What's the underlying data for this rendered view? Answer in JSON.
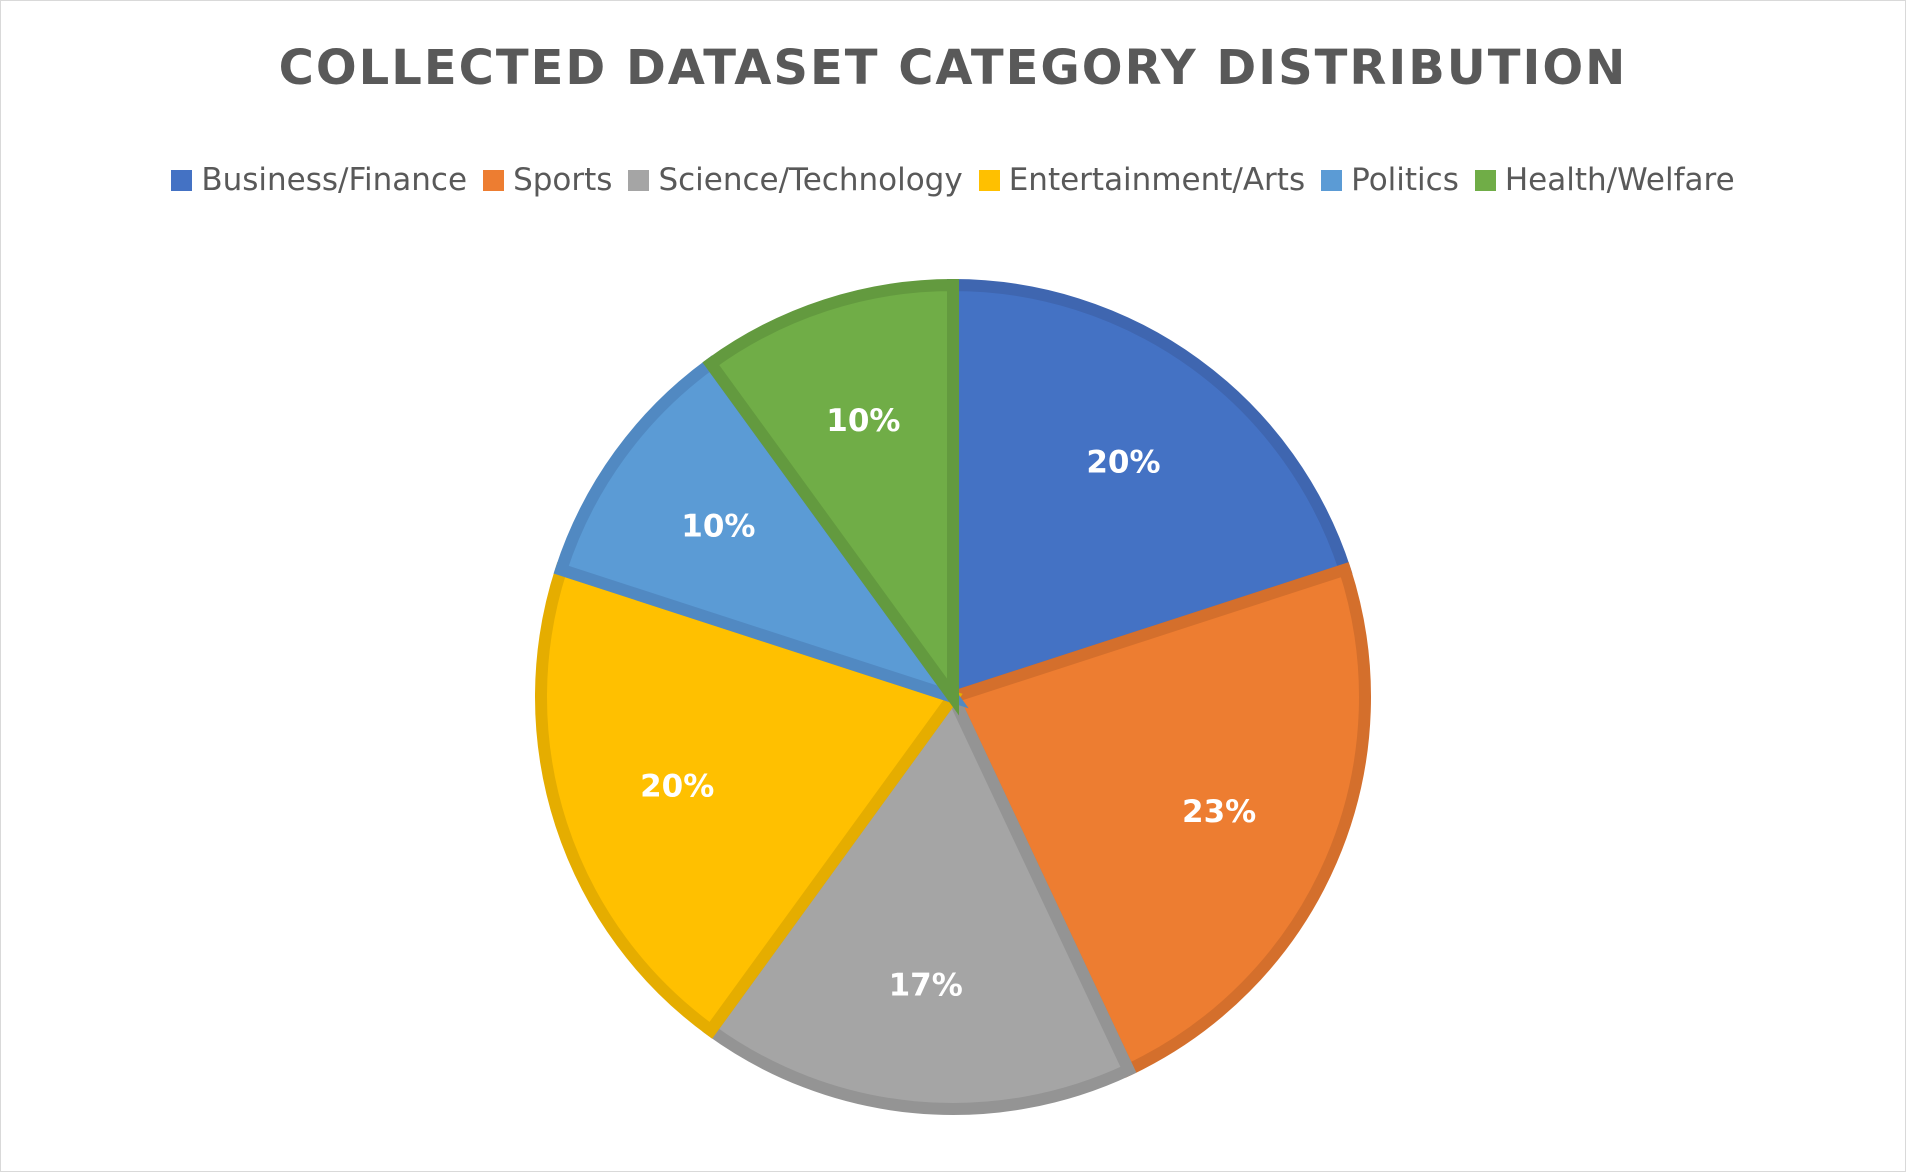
{
  "chart_data": {
    "type": "pie",
    "title": "COLLECTED DATASET CATEGORY DISTRIBUTION",
    "categories": [
      "Business/Finance",
      "Sports",
      "Science/Technology",
      "Entertainment/Arts",
      "Politics",
      "Health/Welfare"
    ],
    "values": [
      20,
      23,
      17,
      20,
      10,
      10
    ],
    "data_labels": [
      "20%",
      "23%",
      "17%",
      "20%",
      "10%",
      "10%"
    ],
    "colors": [
      "#4472C4",
      "#ED7D31",
      "#A5A5A5",
      "#FFC000",
      "#5B9BD5",
      "#70AD47"
    ],
    "border_colors": [
      "#3F66B0",
      "#D46F2C",
      "#949494",
      "#E5AD00",
      "#5189C2",
      "#639A3F"
    ],
    "legend_position": "top",
    "start_angle_deg": 0,
    "direction": "clockwise"
  }
}
